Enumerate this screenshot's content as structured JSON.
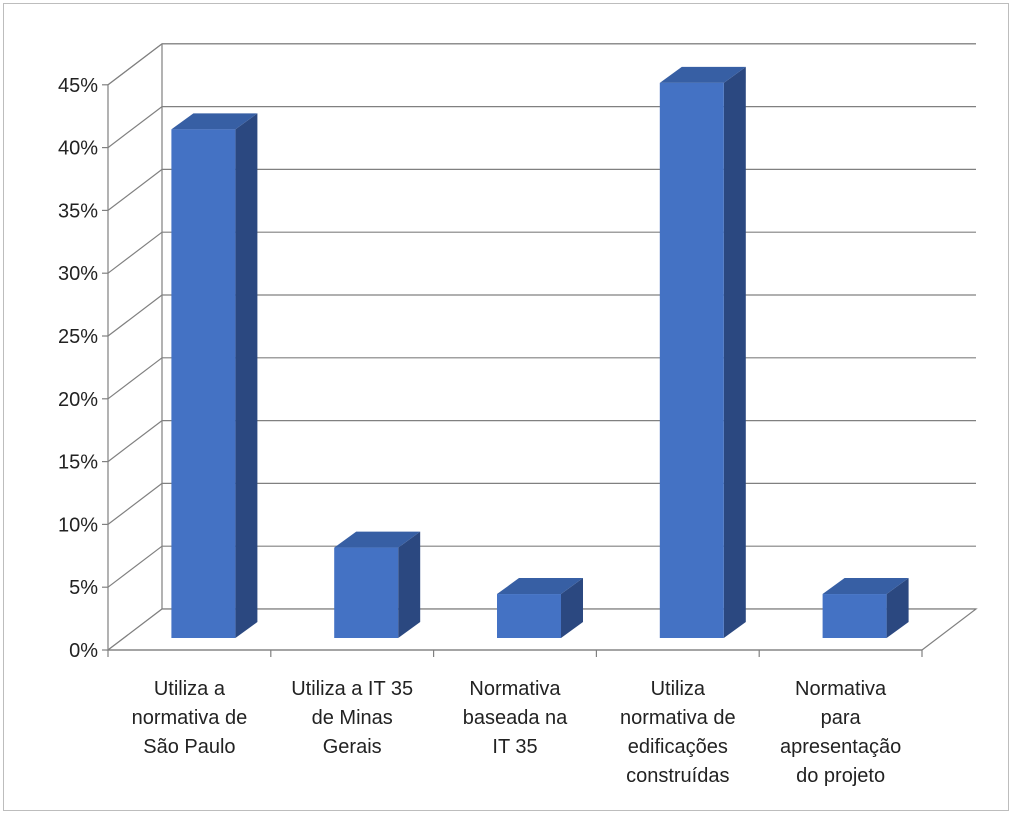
{
  "chart_data": {
    "type": "bar",
    "title": "",
    "xlabel": "",
    "ylabel": "",
    "ylim": [
      0,
      45
    ],
    "y_tick_step": 5,
    "y_tick_format": "percent",
    "y_ticks": [
      "0%",
      "5%",
      "10%",
      "15%",
      "20%",
      "25%",
      "30%",
      "35%",
      "40%",
      "45%"
    ],
    "grid": true,
    "style": "3d-column",
    "legend": "none",
    "colors": {
      "front": "#4472C4",
      "side": "#2B4880",
      "top": "#375FA4",
      "grid": "#808080"
    },
    "categories": [
      [
        "Utiliza a",
        "normativa de",
        "São Paulo"
      ],
      [
        "Utiliza a IT 35",
        "de Minas",
        "Gerais"
      ],
      [
        "Normativa",
        "baseada na",
        "IT 35"
      ],
      [
        "Utiliza",
        "normativa de",
        "edificações",
        "construídas"
      ],
      [
        "Normativa",
        "para",
        "apresentação",
        "do projeto"
      ]
    ],
    "values": [
      40.5,
      7.2,
      3.5,
      44.2,
      3.5
    ]
  }
}
